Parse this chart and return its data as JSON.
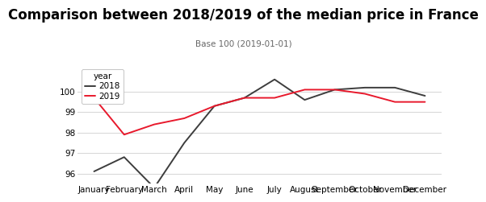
{
  "title": "Comparison between 2018/2019 of the median price in France",
  "subtitle": "Base 100 (2019-01-01)",
  "months": [
    "January",
    "February",
    "March",
    "April",
    "May",
    "June",
    "July",
    "August",
    "September",
    "October",
    "November",
    "December"
  ],
  "series_2018": [
    96.1,
    96.8,
    95.3,
    97.5,
    99.3,
    99.7,
    100.6,
    99.6,
    100.1,
    100.2,
    100.2,
    99.8
  ],
  "series_2019": [
    99.7,
    97.9,
    98.4,
    98.7,
    99.3,
    99.7,
    99.7,
    100.1,
    100.1,
    99.9,
    99.5,
    99.5
  ],
  "color_2018": "#3d3d3d",
  "color_2019": "#e8192c",
  "ylim_min": 95.5,
  "ylim_max": 101.3,
  "yticks": [
    96,
    97,
    98,
    99,
    100
  ],
  "background_color": "#ffffff",
  "grid_color": "#d5d5d5",
  "legend_title": "year",
  "legend_labels": [
    "2018",
    "2019"
  ],
  "title_fontsize": 12,
  "subtitle_fontsize": 7.5,
  "axis_fontsize": 7.5,
  "legend_fontsize": 7.5,
  "linewidth": 1.4
}
